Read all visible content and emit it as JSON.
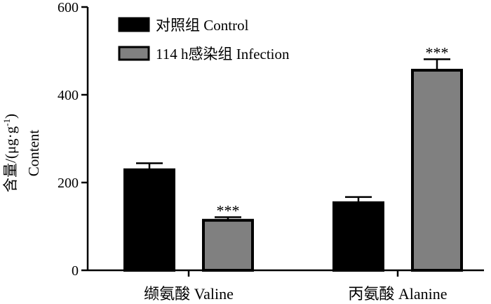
{
  "chart_data": {
    "type": "bar",
    "categories": [
      "缬氨酸 Valine",
      "丙氨酸 Alanine"
    ],
    "series": [
      {
        "name": "对照组 Control",
        "values": [
          229,
          154
        ],
        "errors": [
          15,
          13
        ],
        "significance": [
          "",
          ""
        ],
        "color": "#000000"
      },
      {
        "name": "114 h感染组 Infection",
        "values": [
          114,
          456
        ],
        "errors": [
          7,
          25
        ],
        "significance": [
          "***",
          "***"
        ],
        "color": "#808080"
      }
    ],
    "ylabel_line1": "含量/(μg·g",
    "ylabel_sup": "-1",
    "ylabel_line1_end": ")",
    "ylabel_line2": "Content",
    "ylim": [
      0,
      600
    ],
    "yticks": [
      0,
      200,
      400,
      600
    ],
    "legend_position": "top-left",
    "grid": false
  }
}
